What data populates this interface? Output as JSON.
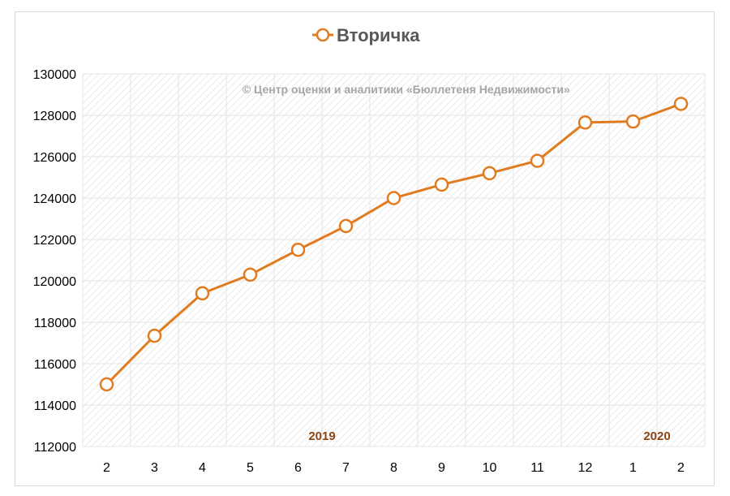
{
  "chart_data": {
    "type": "line",
    "title": "",
    "legend": {
      "position": "top",
      "entries": [
        "Вторичка"
      ]
    },
    "watermark": "© Центр оценки и аналитики «Бюллетеня Недвижимости»",
    "categories": [
      "2",
      "3",
      "4",
      "5",
      "6",
      "7",
      "8",
      "9",
      "10",
      "11",
      "12",
      "1",
      "2"
    ],
    "year_labels": [
      {
        "text": "2019",
        "category_index": 4.5
      },
      {
        "text": "2020",
        "category_index": 11.5
      }
    ],
    "series": [
      {
        "name": "Вторичка",
        "color": "#e07b1f",
        "marker": "circle-hollow",
        "values": [
          115000,
          117350,
          119400,
          120300,
          121500,
          122650,
          124000,
          124650,
          125200,
          125800,
          127650,
          127700,
          128550
        ]
      }
    ],
    "xlabel": "",
    "ylabel": "",
    "ylim": [
      112000,
      130000
    ],
    "yticks": [
      112000,
      114000,
      116000,
      118000,
      120000,
      122000,
      124000,
      126000,
      128000,
      130000
    ],
    "grid": true,
    "colors": {
      "line": "#e07b1f",
      "marker_fill": "#ffffff",
      "grid": "#e6e6e6",
      "year_text": "#8b4513",
      "watermark": "#a6a6a6",
      "legend_text": "#595959"
    }
  }
}
